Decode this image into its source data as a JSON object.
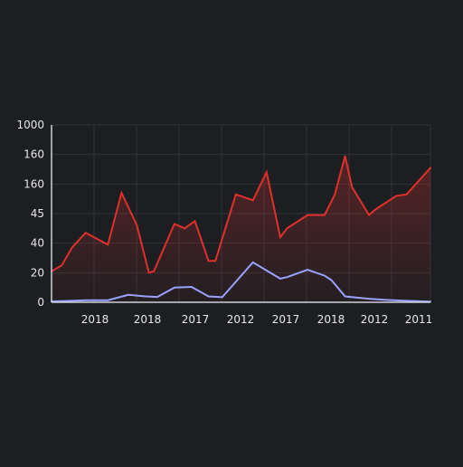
{
  "colors": {
    "background": "#1c1e22",
    "grid": "#2f3238",
    "axis": "#cfd2d8",
    "tick_text": "#e8e8ea",
    "series_red": "#e0302b",
    "series_blue": "#9aa2ff"
  },
  "chart_data": {
    "type": "area",
    "grid": true,
    "legend": "none",
    "y_ticks": [
      "0",
      "20",
      "40",
      "45",
      "160",
      "160",
      "1000"
    ],
    "x_ticks": [
      "2018",
      "2018",
      "2017",
      "2012",
      "2017",
      "2018",
      "2012",
      "2011"
    ],
    "ylim": [
      0,
      6
    ],
    "series": [
      {
        "color": "#e0302b",
        "fill": true,
        "x": [
          0,
          0.3,
          0.6,
          1,
          1.65,
          2.05,
          2.5,
          2.85,
          3,
          3.6,
          3.9,
          4.2,
          4.6,
          4.8,
          5.4,
          5.9,
          6.3,
          6.7,
          6.9,
          7.5,
          7.7,
          8,
          8.3,
          8.6,
          8.8,
          9.3,
          9.5,
          10.1,
          10.4,
          11.1
        ],
        "values": [
          1.05,
          1.25,
          1.85,
          2.35,
          1.95,
          3.7,
          2.6,
          1.0,
          1.05,
          2.65,
          2.5,
          2.75,
          1.4,
          1.4,
          3.65,
          3.45,
          4.4,
          2.2,
          2.5,
          2.95,
          2.95,
          2.95,
          3.65,
          4.95,
          3.9,
          2.95,
          3.15,
          3.6,
          3.65,
          4.55
        ]
      },
      {
        "color": "#9aa2ff",
        "fill": false,
        "x": [
          0,
          0.6,
          1,
          1.65,
          2.25,
          2.75,
          3.1,
          3.6,
          4.1,
          4.6,
          5.0,
          5.9,
          6.7,
          6.9,
          7.5,
          8.0,
          8.2,
          8.6,
          9.3,
          9.8,
          10.4,
          11.1
        ],
        "values": [
          0.03,
          0.05,
          0.07,
          0.07,
          0.25,
          0.2,
          0.18,
          0.5,
          0.52,
          0.2,
          0.17,
          1.35,
          0.8,
          0.85,
          1.1,
          0.9,
          0.75,
          0.2,
          0.12,
          0.08,
          0.05,
          0.02
        ]
      }
    ]
  }
}
